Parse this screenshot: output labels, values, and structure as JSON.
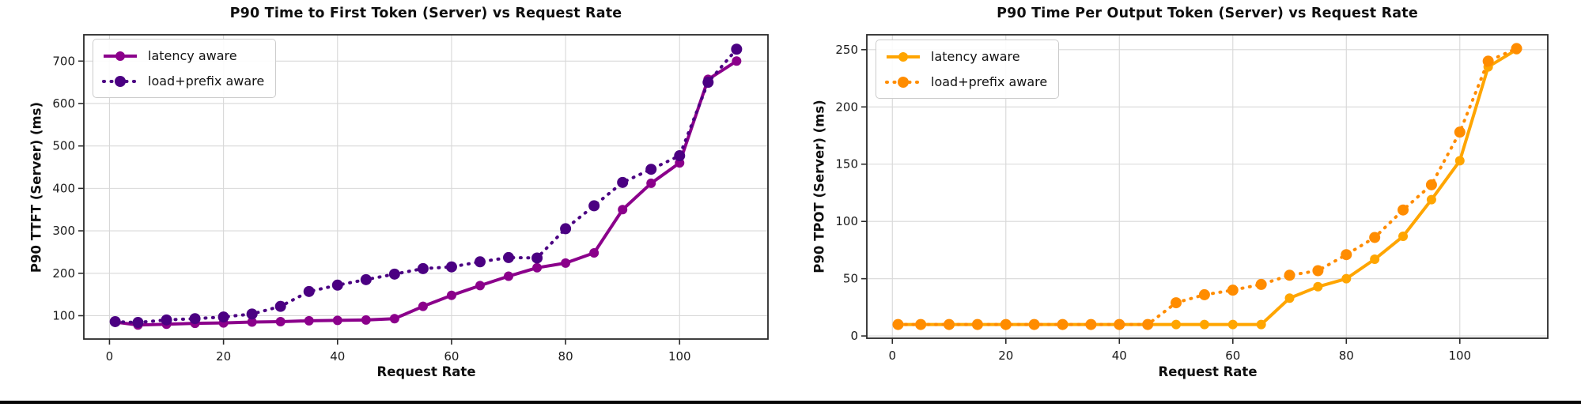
{
  "page": {
    "background_color": "#ffffff",
    "footer_rule_color": "#050505",
    "grid_color": "#d8d8d8",
    "spine_color": "#2a2a2a",
    "tick_label_color": "#1a1a1a"
  },
  "chart_data": [
    {
      "type": "line",
      "title": "P90 Time to First Token (Server) vs Request Rate",
      "xlabel": "Request Rate",
      "ylabel": "P90 TTFT (Server) (ms)",
      "x": [
        1,
        5,
        10,
        15,
        20,
        25,
        30,
        35,
        40,
        45,
        50,
        55,
        60,
        65,
        70,
        75,
        80,
        85,
        90,
        95,
        100,
        105,
        110
      ],
      "series": [
        {
          "name": "latency aware",
          "style": "solid",
          "color": "#8B008B",
          "values": [
            85,
            78,
            80,
            82,
            83,
            85,
            86,
            88,
            89,
            90,
            93,
            122,
            148,
            171,
            193,
            213,
            224,
            248,
            350,
            412,
            460,
            657,
            700
          ]
        },
        {
          "name": "load+prefix aware",
          "style": "dotted",
          "color": "#4B0082",
          "values": [
            86,
            84,
            90,
            93,
            97,
            104,
            122,
            157,
            172,
            185,
            198,
            211,
            215,
            227,
            237,
            236,
            305,
            359,
            414,
            445,
            477,
            650,
            728
          ]
        }
      ],
      "xlim": [
        -4.5,
        115.5
      ],
      "ylim": [
        45,
        762
      ],
      "xticks": [
        0,
        20,
        40,
        60,
        80,
        100
      ],
      "yticks": [
        100,
        200,
        300,
        400,
        500,
        600,
        700
      ],
      "grid": true,
      "legend_position": "upper left"
    },
    {
      "type": "line",
      "title": "P90 Time Per Output Token (Server) vs Request Rate",
      "xlabel": "Request Rate",
      "ylabel": "P90 TPOT (Server) (ms)",
      "x": [
        1,
        5,
        10,
        15,
        20,
        25,
        30,
        35,
        40,
        45,
        50,
        55,
        60,
        65,
        70,
        75,
        80,
        85,
        90,
        95,
        100,
        105,
        110
      ],
      "series": [
        {
          "name": "latency aware",
          "style": "solid",
          "color": "#FFA500",
          "values": [
            10,
            10,
            10,
            10,
            10,
            10,
            10,
            10,
            10,
            10,
            10,
            10,
            10,
            10,
            33,
            43,
            50,
            67,
            87,
            119,
            153,
            235,
            250
          ]
        },
        {
          "name": "load+prefix aware",
          "style": "dotted",
          "color": "#FF8C00",
          "values": [
            10,
            10,
            10,
            10,
            10,
            10,
            10,
            10,
            10,
            10,
            29,
            36,
            40,
            45,
            53,
            57,
            71,
            86,
            110,
            132,
            178,
            240,
            251
          ]
        }
      ],
      "xlim": [
        -4.5,
        115.5
      ],
      "ylim": [
        -2,
        263
      ],
      "xticks": [
        0,
        20,
        40,
        60,
        80,
        100
      ],
      "yticks": [
        0,
        50,
        100,
        150,
        200,
        250
      ],
      "grid": true,
      "legend_position": "upper left"
    }
  ]
}
